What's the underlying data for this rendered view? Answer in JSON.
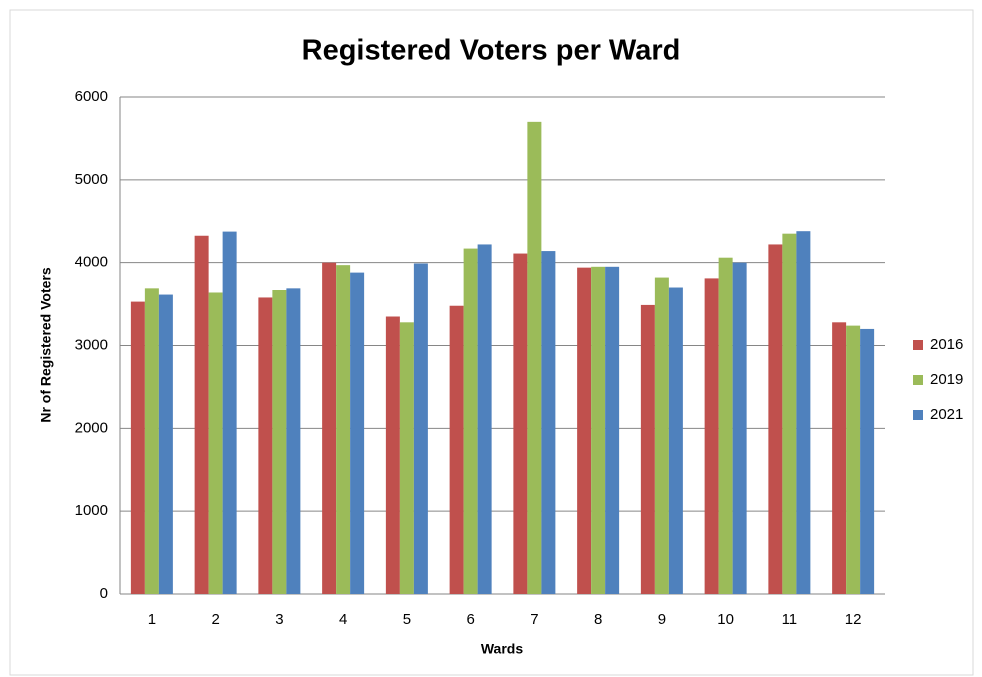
{
  "chart_data": {
    "type": "bar",
    "title": "Registered Voters per Ward",
    "x_label": "Wards",
    "y_label": "Nr of Registered Voters",
    "categories": [
      "1",
      "2",
      "3",
      "4",
      "5",
      "6",
      "7",
      "8",
      "9",
      "10",
      "11",
      "12"
    ],
    "series": [
      {
        "name": "2016",
        "color": "#c0504d",
        "values": [
          3530,
          4325,
          3580,
          4000,
          3350,
          3480,
          4110,
          3940,
          3490,
          3810,
          4220,
          3280
        ]
      },
      {
        "name": "2019",
        "color": "#9bbb59",
        "values": [
          3690,
          3640,
          3670,
          3970,
          3280,
          4170,
          5700,
          3950,
          3820,
          4060,
          4350,
          3240
        ]
      },
      {
        "name": "2021",
        "color": "#4f81bd",
        "values": [
          3615,
          4375,
          3690,
          3880,
          3990,
          4220,
          4140,
          3950,
          3700,
          4000,
          4380,
          3200
        ]
      }
    ],
    "ylim": [
      0,
      6000
    ],
    "yticks": [
      0,
      1000,
      2000,
      3000,
      4000,
      5000,
      6000
    ],
    "grid": true,
    "legend": "right"
  }
}
